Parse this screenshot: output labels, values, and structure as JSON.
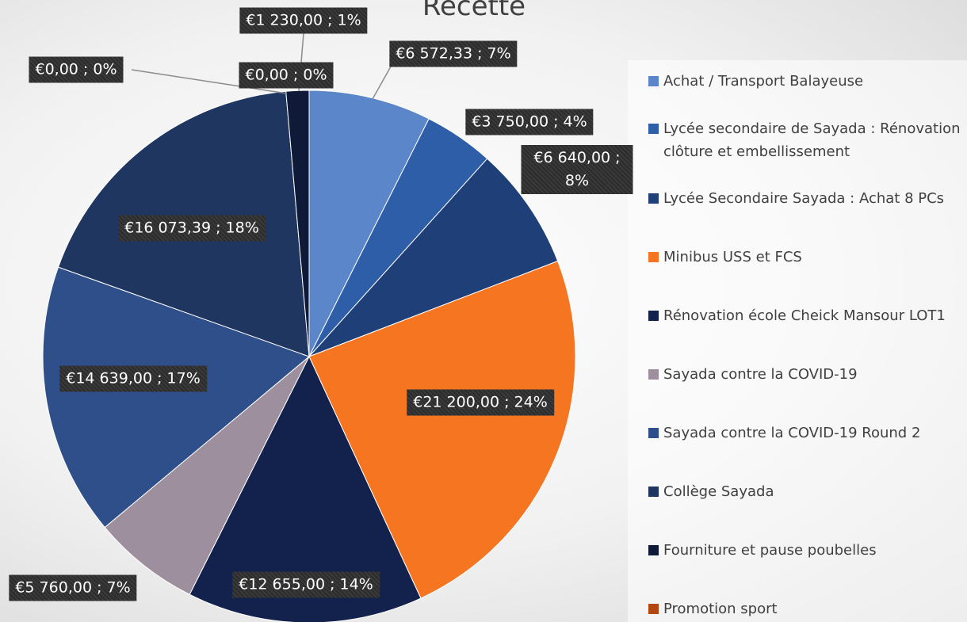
{
  "chart_data": {
    "type": "pie",
    "title": "Recette",
    "categories": [
      "Achat / Transport Balayeuse",
      "Lycée secondaire de Sayada : Rénovation clôture et embellissement",
      "Lycée Secondaire Sayada : Achat 8 PCs",
      "Minibus USS et FCS",
      "Rénovation école Cheick Mansour LOT1",
      "Sayada contre la COVID-19",
      "Sayada contre la COVID-19 Round 2",
      "Collège Sayada",
      "Fourniture et pause poubelles",
      "Promotion sport",
      null
    ],
    "values": [
      6572.33,
      3750,
      6640,
      21200,
      12655,
      5760,
      14639,
      16073.39,
      1230,
      0,
      0
    ],
    "value_labels": [
      "€6 572,33 ; 7%",
      "€3 750,00 ; 4%",
      "€6 640,00 ; 8%",
      "€21 200,00 ; 24%",
      "€12 655,00 ; 14%",
      "€5 760,00 ; 7%",
      "€14 639,00 ; 17%",
      "€16 073,39 ; 18%",
      "€1 230,00 ; 1%",
      "€0,00 ; 0%",
      "€0,00 ; 0%"
    ],
    "colors": [
      "#5b86c9",
      "#2f5ea8",
      "#1f3f78",
      "#f57520",
      "#13214d",
      "#9e8f9e",
      "#2f4f8a",
      "#1f3660",
      "#0f1a38",
      "#b3480f",
      "#7a8fb8"
    ],
    "legend": "right"
  }
}
